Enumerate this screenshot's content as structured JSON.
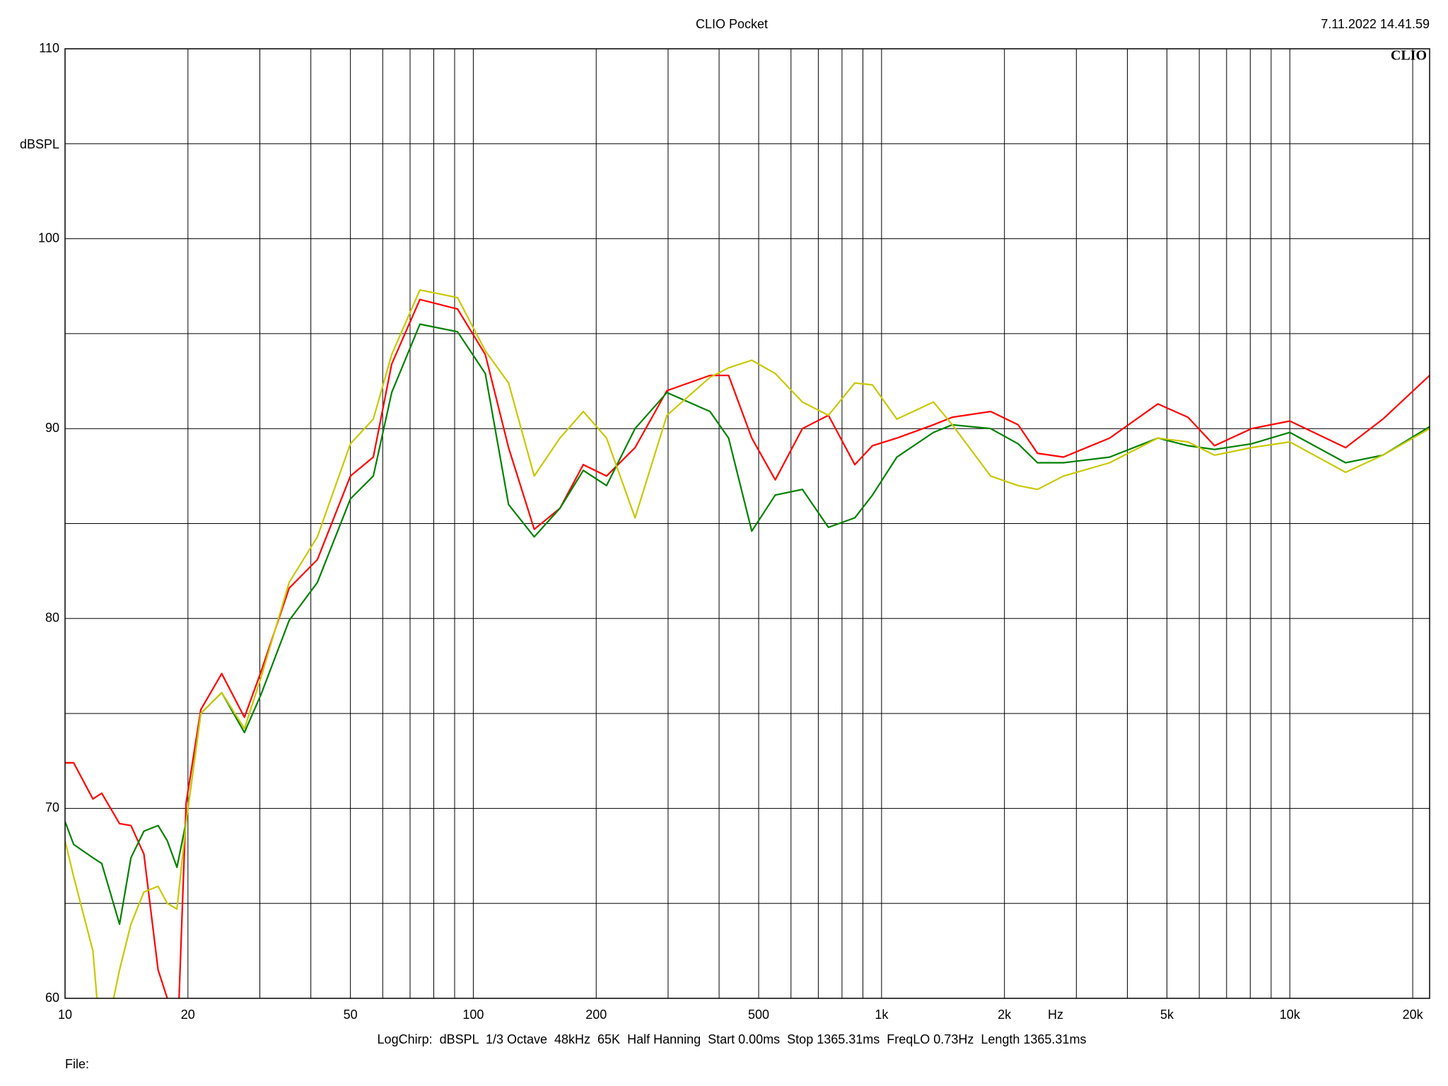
{
  "chart_data": {
    "type": "line",
    "title": "CLIO Pocket",
    "timestamp": "7.11.2022 14.41.59",
    "logo": "CLIO",
    "ylabel": "dBSPL",
    "xlabel": "Hz",
    "footer": "LogChirp:  dBSPL  1/3 Octave  48kHz  65K  Half Hanning  Start 0.00ms  Stop 1365.31ms  FreqLO 0.73Hz  Length 1365.31ms",
    "file_label": "File:",
    "xscale": "log",
    "grid": true,
    "xlim": [
      10,
      22000
    ],
    "ylim": [
      60,
      110
    ],
    "xticks": [
      10,
      20,
      50,
      100,
      200,
      500,
      {
        "value": 1000,
        "label": "1k"
      },
      {
        "value": 2000,
        "label": "2k"
      },
      {
        "value": 5000,
        "label": "5k"
      },
      {
        "value": 10000,
        "label": "10k"
      },
      {
        "value": 20000,
        "label": "20k"
      }
    ],
    "xminor": [
      30,
      40,
      60,
      70,
      80,
      90,
      300,
      400,
      600,
      700,
      800,
      900,
      3000,
      4000,
      6000,
      7000,
      8000,
      9000
    ],
    "yticks": [
      60,
      70,
      80,
      90,
      100,
      110
    ],
    "yminor": [
      65,
      75,
      85,
      95,
      105
    ],
    "x": [
      10,
      10.5,
      11.7,
      12.3,
      13.6,
      14.5,
      15.6,
      16.9,
      17.8,
      18.8,
      19.8,
      21.5,
      24.2,
      27.5,
      30.2,
      35.4,
      41.5,
      50,
      56.9,
      63.1,
      74,
      91.5,
      107,
      122,
      141,
      163,
      186,
      212,
      249,
      298,
      380,
      422,
      481,
      549,
      640,
      741,
      860,
      950,
      1090,
      1340,
      1490,
      1850,
      2160,
      2410,
      2790,
      3620,
      4750,
      5630,
      6540,
      8060,
      10000,
      13700,
      16900,
      22000
    ],
    "series": [
      {
        "name": "red",
        "color": "#ff0000",
        "values": [
          72.4,
          72.4,
          70.5,
          70.8,
          69.2,
          69.1,
          67.6,
          61.5,
          60,
          57,
          70.3,
          75.2,
          77.1,
          74.8,
          77.2,
          81.6,
          83.1,
          87.5,
          88.5,
          93.4,
          96.8,
          96.3,
          93.9,
          89,
          84.7,
          85.8,
          88.1,
          87.5,
          89,
          92,
          92.8,
          92.8,
          89.5,
          87.3,
          90,
          90.7,
          88.1,
          89.1,
          89.5,
          90.2,
          90.6,
          90.9,
          90.2,
          88.7,
          88.5,
          89.5,
          91.3,
          90.6,
          89.1,
          90,
          90.4,
          89,
          90.5,
          92.8
        ]
      },
      {
        "name": "green",
        "color": "#008000",
        "values": [
          69.3,
          68.1,
          67.4,
          67.1,
          63.9,
          67.4,
          68.8,
          69.1,
          68.3,
          66.9,
          69.3,
          75,
          76.1,
          74,
          76,
          79.9,
          81.9,
          86.3,
          87.5,
          91.9,
          95.5,
          95.1,
          92.9,
          86,
          84.3,
          85.8,
          87.8,
          87,
          90,
          91.9,
          90.9,
          89.5,
          84.6,
          86.5,
          86.8,
          84.8,
          85.3,
          86.5,
          88.5,
          89.8,
          90.2,
          90,
          89.2,
          88.2,
          88.2,
          88.5,
          89.5,
          89.1,
          88.9,
          89.2,
          89.8,
          88.2,
          88.6,
          90.1
        ]
      },
      {
        "name": "yellow",
        "color": "#c8c800",
        "values": [
          68.3,
          66.4,
          62.5,
          57,
          61.5,
          63.9,
          65.6,
          65.9,
          65,
          64.7,
          69.3,
          75,
          76.1,
          74.2,
          76.9,
          81.9,
          84.3,
          89.2,
          90.5,
          93.9,
          97.3,
          96.9,
          94.1,
          92.4,
          87.5,
          89.5,
          90.9,
          89.5,
          85.3,
          90.7,
          92.7,
          93.2,
          93.6,
          92.9,
          91.4,
          90.7,
          92.4,
          92.3,
          90.5,
          91.4,
          90.2,
          87.5,
          87,
          86.8,
          87.5,
          88.2,
          89.5,
          89.3,
          88.6,
          89,
          89.3,
          87.7,
          88.6,
          90
        ]
      }
    ]
  }
}
